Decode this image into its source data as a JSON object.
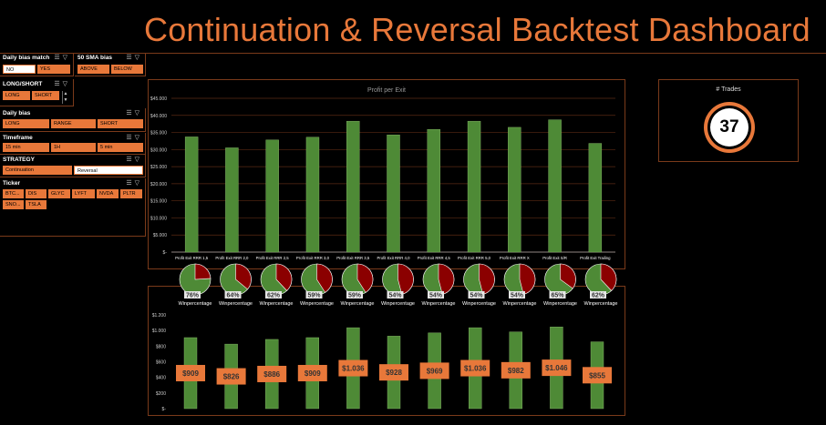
{
  "dashboard": {
    "title": "Continuation & Reversal Backtest Dashboard",
    "accent_color": "#e8783a",
    "green_color": "#4e8a36",
    "red_color": "#8b0000"
  },
  "slicers": {
    "daily_bias_match": {
      "title": "Daily bias match",
      "items": [
        "NO",
        "YES"
      ],
      "selected": "NO"
    },
    "sma_bias": {
      "title": "50 SMA bias",
      "items": [
        "ABOVE",
        "BELOW"
      ]
    },
    "long_short": {
      "title": "LONG/SHORT",
      "items": [
        "LONG",
        "SHORT"
      ]
    },
    "daily_bias": {
      "title": "Daily bias",
      "items": [
        "LONG",
        "RANGE",
        "SHORT"
      ]
    },
    "timeframe": {
      "title": "Timeframe",
      "items": [
        "15 min",
        "1H",
        "5 min"
      ]
    },
    "strategy": {
      "title": "STRATEGY",
      "items": [
        "Continuation",
        "Reversal"
      ],
      "selected": "Reversal"
    },
    "ticker": {
      "title": "Ticker",
      "items": [
        "BTC...",
        "DIS",
        "GLYC",
        "LYFT",
        "NVDA",
        "PLTR",
        "SNO...",
        "TSLA"
      ]
    },
    "icons": [
      "multi-select-icon",
      "clear-filter-icon"
    ]
  },
  "trades": {
    "label": "# Trades",
    "value": "37"
  },
  "chart_data": [
    {
      "type": "bar",
      "title": "Profit per Exit",
      "categories": [
        "Profit Exit RRR 1,5",
        "Profit Exit RRR 2,0",
        "Profit Exit RRR 2,5",
        "Profit Exit RRR 3,0",
        "Profit Exit RRR 3,5",
        "Profit Exit RRR 4,0",
        "Profit Exit RRR 4,5",
        "Profit Exit RRR 5,0",
        "Profit Exit RRR X",
        "Profit Exit S/R",
        "Profit Exit Trailing"
      ],
      "values": [
        33700,
        30500,
        32800,
        33600,
        38300,
        34300,
        35900,
        38300,
        36500,
        38700,
        31800
      ],
      "ylim": [
        0,
        45000
      ],
      "yticks": [
        "$-",
        "$5.000",
        "$10.000",
        "$15.000",
        "$20.000",
        "$25.000",
        "$30.000",
        "$35.000",
        "$40.000",
        "$45.000"
      ],
      "grid": true,
      "color": "#4e8a36"
    },
    {
      "type": "pie",
      "label": "Winpercentage",
      "values": [
        76,
        64,
        62,
        59,
        59,
        54,
        54,
        54,
        54,
        65,
        62
      ],
      "value_labels": [
        "76%",
        "64%",
        "62%",
        "59%",
        "59%",
        "54%",
        "54%",
        "54%",
        "54%",
        "65%",
        "62%"
      ],
      "colors": [
        "#4e8a36",
        "#8b0000"
      ]
    },
    {
      "type": "bar",
      "values": [
        909,
        826,
        886,
        909,
        1036,
        928,
        969,
        1036,
        982,
        1046,
        855
      ],
      "value_labels": [
        "$909",
        "$826",
        "$886",
        "$909",
        "$1.036",
        "$928",
        "$969",
        "$1.036",
        "$982",
        "$1.046",
        "$855"
      ],
      "ylim": [
        0,
        1200
      ],
      "yticks": [
        "$-",
        "$200",
        "$400",
        "$600",
        "$800",
        "$1.000",
        "$1.200"
      ],
      "grid": false,
      "color": "#4e8a36",
      "label_color": "#e8783a"
    }
  ]
}
